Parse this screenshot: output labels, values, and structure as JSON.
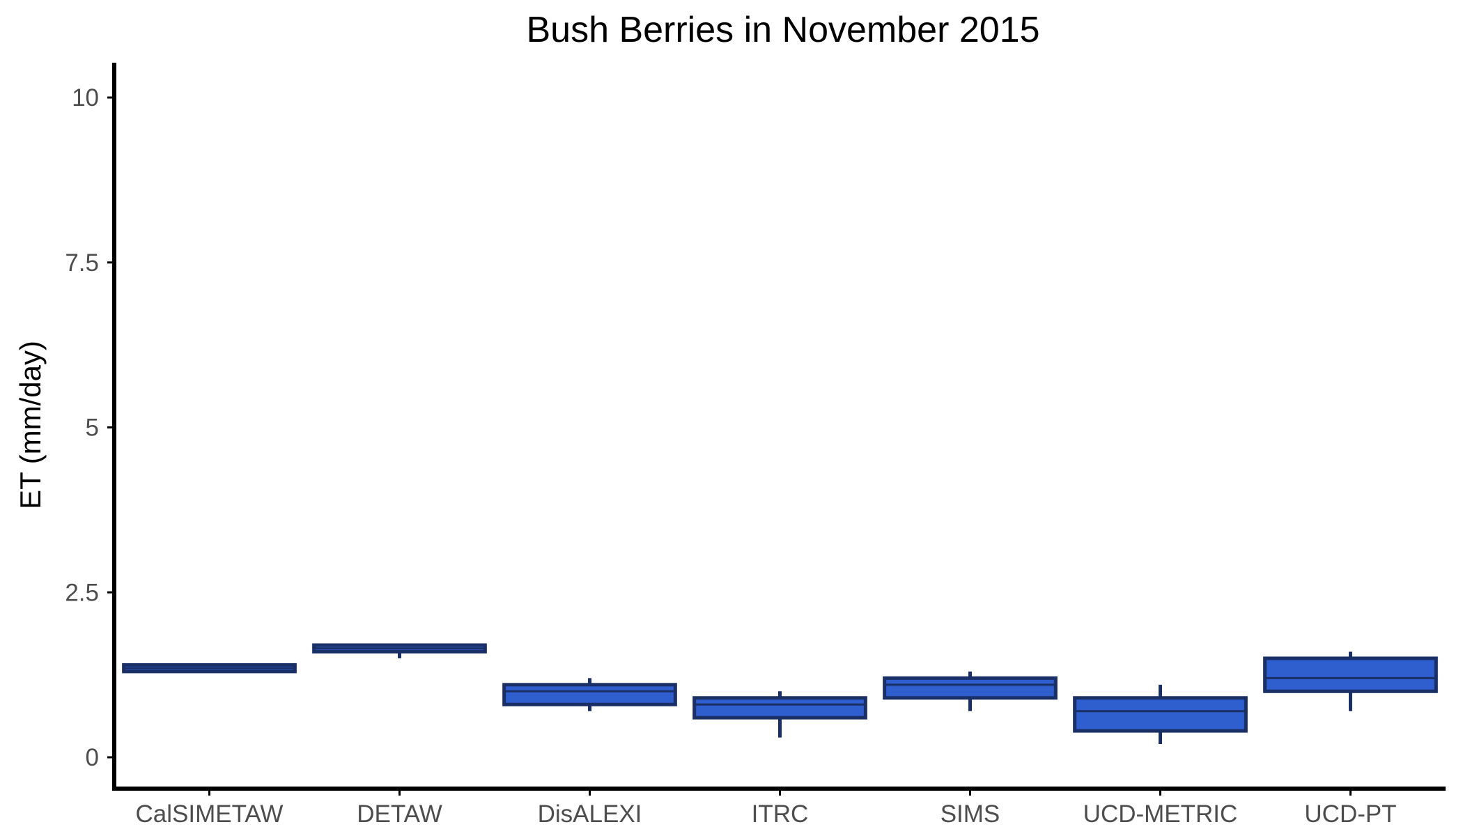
{
  "chart_data": {
    "type": "boxplot",
    "title": "Bush Berries in November 2015",
    "ylabel": "ET (mm/day)",
    "xlabel": "",
    "ylim": [
      -0.5,
      10.5
    ],
    "yticks": [
      0,
      2.5,
      5,
      7.5,
      10
    ],
    "ytick_labels": [
      "0",
      "2.5",
      "5",
      "7.5",
      "10"
    ],
    "grid": false,
    "box_fill": "#2F5FCE",
    "box_stroke": "#1A2F66",
    "categories": [
      "CalSIMETAW",
      "DETAW",
      "DisALEXI",
      "ITRC",
      "SIMS",
      "UCD-METRIC",
      "UCD-PT"
    ],
    "boxes": [
      {
        "min": 1.3,
        "q1": 1.3,
        "median": 1.35,
        "q3": 1.4,
        "max": 1.4
      },
      {
        "min": 1.5,
        "q1": 1.6,
        "median": 1.65,
        "q3": 1.7,
        "max": 1.7
      },
      {
        "min": 0.7,
        "q1": 0.8,
        "median": 1.0,
        "q3": 1.1,
        "max": 1.2
      },
      {
        "min": 0.3,
        "q1": 0.6,
        "median": 0.8,
        "q3": 0.9,
        "max": 1.0
      },
      {
        "min": 0.7,
        "q1": 0.9,
        "median": 1.1,
        "q3": 1.2,
        "max": 1.3
      },
      {
        "min": 0.2,
        "q1": 0.4,
        "median": 0.7,
        "q3": 0.9,
        "max": 1.1
      },
      {
        "min": 0.7,
        "q1": 1.0,
        "median": 1.2,
        "q3": 1.5,
        "max": 1.6
      }
    ]
  }
}
